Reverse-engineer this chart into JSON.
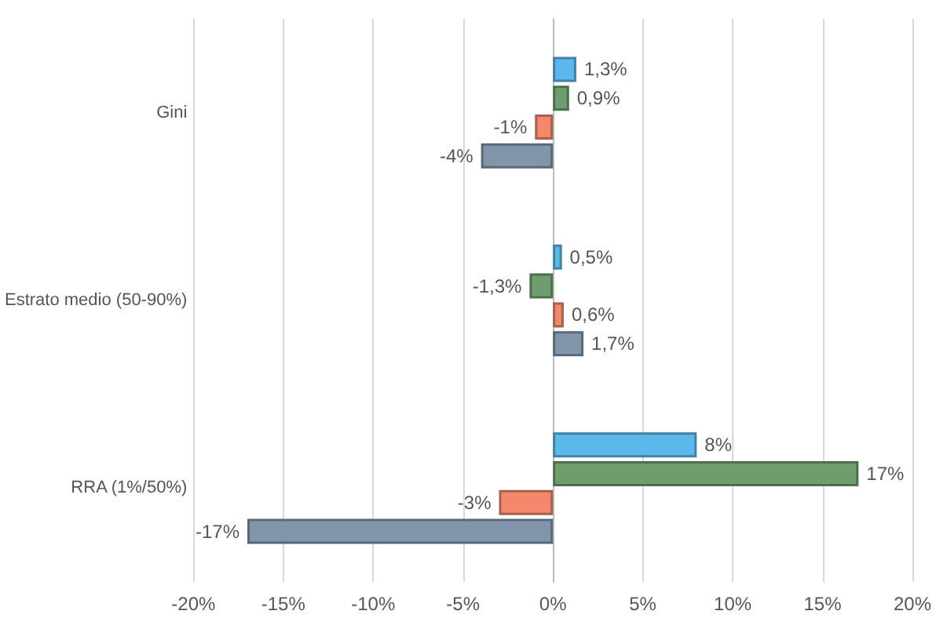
{
  "chart_data": {
    "type": "bar",
    "orientation": "horizontal",
    "categories": [
      "Gini",
      "Estrato medio (50-90%)",
      "RRA (1%/50%)"
    ],
    "series": [
      {
        "color": "#5bb8ea",
        "values": [
          1.3,
          0.5,
          8
        ],
        "value_labels": [
          "1,3%",
          "0,5%",
          "8%"
        ]
      },
      {
        "color": "#6e9e6e",
        "values": [
          0.9,
          -1.3,
          17
        ],
        "value_labels": [
          "0,9%",
          "-1,3%",
          "17%"
        ]
      },
      {
        "color": "#f3886c",
        "values": [
          -1,
          0.6,
          -3
        ],
        "value_labels": [
          "-1%",
          "0,6%",
          "-3%"
        ]
      },
      {
        "color": "#8196ab",
        "values": [
          -4,
          1.7,
          -17
        ],
        "value_labels": [
          "-4%",
          "1,7%",
          "-17%"
        ]
      }
    ],
    "xlim": [
      -20,
      20
    ],
    "xticks": [
      {
        "value": -20,
        "label": "-20%"
      },
      {
        "value": -15,
        "label": "-15%"
      },
      {
        "value": -10,
        "label": "-10%"
      },
      {
        "value": -5,
        "label": "-5%"
      },
      {
        "value": 0,
        "label": "0%"
      },
      {
        "value": 5,
        "label": "5%"
      },
      {
        "value": 10,
        "label": "10%"
      },
      {
        "value": 15,
        "label": "15%"
      },
      {
        "value": 20,
        "label": "20%"
      }
    ],
    "grid": "x"
  }
}
